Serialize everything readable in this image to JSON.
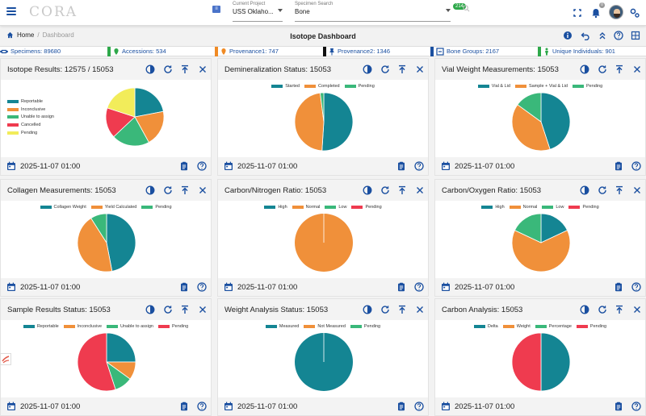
{
  "header": {
    "logo": "CORA",
    "project_label": "Current Project",
    "project_value": "USS Oklaho...",
    "specimen_label": "Specimen Search",
    "specimen_value": "Bone",
    "green_badge": "214",
    "notif_count": "0"
  },
  "breadcrumb": {
    "home": "Home",
    "separator": "/",
    "current": "Dashboard"
  },
  "page_title": "Isotope Dashboard",
  "stats": [
    {
      "label": "Specimens: 89680",
      "color": "#1a4fa0",
      "icon": "bone-icon"
    },
    {
      "label": "Accessions: 534",
      "color": "#2ea84a",
      "icon": "map-pin-icon"
    },
    {
      "label": "Provenance1: 747",
      "color": "#f08a24",
      "icon": "location-pin-icon"
    },
    {
      "label": "Provenance2: 1346",
      "color": "#111111",
      "icon": "pushpin-icon"
    },
    {
      "label": "Bone Groups: 2167",
      "color": "#1a4fa0",
      "icon": "bone-group-icon"
    },
    {
      "label": "Unique Individuals: 901",
      "color": "#2ea84a",
      "icon": "person-icon"
    }
  ],
  "colors": {
    "teal": "#148593",
    "orange": "#f0903a",
    "green": "#3ab87a",
    "red": "#ef3b4f",
    "yellow": "#f2ec5a",
    "accent": "#1a4fa0"
  },
  "card_date": "2025-11-07 01:00",
  "cards": [
    {
      "title": "Isotope Results: 12575 / 15053",
      "chart_data": {
        "type": "pie",
        "legend": "vertical-left",
        "series": [
          {
            "name": "Reportable",
            "value": 22,
            "color": "#148593"
          },
          {
            "name": "Inconclusive",
            "value": 20,
            "color": "#f0903a"
          },
          {
            "name": "Unable to assign",
            "value": 21,
            "color": "#3ab87a"
          },
          {
            "name": "Cancelled",
            "value": 17,
            "color": "#ef3b4f"
          },
          {
            "name": "Pending",
            "value": 20,
            "color": "#f2ec5a"
          }
        ]
      }
    },
    {
      "title": "Demineralization Status: 15053",
      "chart_data": {
        "type": "pie",
        "legend": "top",
        "series": [
          {
            "name": "Started",
            "value": 51,
            "color": "#148593"
          },
          {
            "name": "Completed",
            "value": 47,
            "color": "#f0903a"
          },
          {
            "name": "Pending",
            "value": 2,
            "color": "#3ab87a"
          }
        ]
      }
    },
    {
      "title": "Vial Weight Measurements: 15053",
      "chart_data": {
        "type": "pie",
        "legend": "top",
        "series": [
          {
            "name": "Vial & Lid",
            "value": 45,
            "color": "#148593"
          },
          {
            "name": "Sample + Vial & Lid",
            "value": 40,
            "color": "#f0903a"
          },
          {
            "name": "Pending",
            "value": 15,
            "color": "#3ab87a"
          }
        ]
      }
    },
    {
      "title": "Collagen Measurements: 15053",
      "chart_data": {
        "type": "pie",
        "legend": "top",
        "series": [
          {
            "name": "Collagen Weight",
            "value": 47,
            "color": "#148593"
          },
          {
            "name": "Yield Calculated",
            "value": 44,
            "color": "#f0903a"
          },
          {
            "name": "Pending",
            "value": 9,
            "color": "#3ab87a"
          }
        ]
      }
    },
    {
      "title": "Carbon/Nitrogen Ratio: 15053",
      "chart_data": {
        "type": "pie",
        "legend": "top",
        "series": [
          {
            "name": "High",
            "value": 0,
            "color": "#148593"
          },
          {
            "name": "Normal",
            "value": 100,
            "color": "#f0903a"
          },
          {
            "name": "Low",
            "value": 0,
            "color": "#3ab87a"
          },
          {
            "name": "Pending",
            "value": 0,
            "color": "#ef3b4f"
          }
        ]
      }
    },
    {
      "title": "Carbon/Oxygen Ratio: 15053",
      "chart_data": {
        "type": "pie",
        "legend": "top",
        "series": [
          {
            "name": "High",
            "value": 18,
            "color": "#148593"
          },
          {
            "name": "Normal",
            "value": 64,
            "color": "#f0903a"
          },
          {
            "name": "Low",
            "value": 18,
            "color": "#3ab87a"
          },
          {
            "name": "Pending",
            "value": 0,
            "color": "#ef3b4f"
          }
        ]
      }
    },
    {
      "title": "Sample Results Status: 15053",
      "chart_data": {
        "type": "pie",
        "legend": "top",
        "series": [
          {
            "name": "Reportable",
            "value": 25,
            "color": "#148593"
          },
          {
            "name": "Inconclusive",
            "value": 10,
            "color": "#f0903a"
          },
          {
            "name": "Unable to assign",
            "value": 10,
            "color": "#3ab87a"
          },
          {
            "name": "Pending",
            "value": 55,
            "color": "#ef3b4f"
          }
        ]
      }
    },
    {
      "title": "Weight Analysis Status: 15053",
      "chart_data": {
        "type": "pie",
        "legend": "top",
        "series": [
          {
            "name": "Measured",
            "value": 100,
            "color": "#148593"
          },
          {
            "name": "Not Measured",
            "value": 0,
            "color": "#f0903a"
          },
          {
            "name": "Pending",
            "value": 0,
            "color": "#3ab87a"
          }
        ]
      }
    },
    {
      "title": "Carbon Analysis: 15053",
      "chart_data": {
        "type": "pie",
        "legend": "top",
        "series": [
          {
            "name": "Delta",
            "value": 50,
            "color": "#148593"
          },
          {
            "name": "Weight",
            "value": 0,
            "color": "#f0903a"
          },
          {
            "name": "Percentage",
            "value": 0,
            "color": "#3ab87a"
          },
          {
            "name": "Pending",
            "value": 50,
            "color": "#ef3b4f"
          }
        ]
      }
    }
  ]
}
